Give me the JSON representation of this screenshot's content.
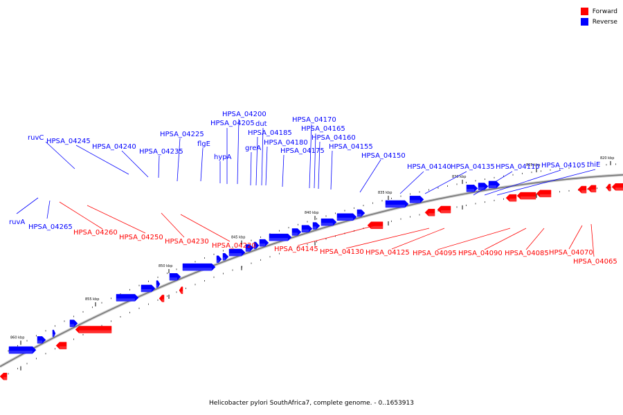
{
  "caption": "Helicobacter pylori SouthAfrica7, complete genome. - 0..1653913",
  "legend": [
    {
      "label": "Forward",
      "color": "#ff0000"
    },
    {
      "label": "Reverse",
      "color": "#0000ff"
    }
  ],
  "colors": {
    "forward": "#ff0000",
    "reverse": "#0000ff",
    "backbone": "#888888"
  },
  "scale": {
    "kbp_labels": [
      "860 kbp",
      "855 kbp",
      "850 kbp",
      "845 kbp",
      "840 kbp",
      "835 kbp",
      "830 kbp",
      "825 kbp",
      "820 kbp"
    ]
  },
  "genes": {
    "reverse": [
      "ruvC",
      "HPSA_04245",
      "HPSA_04240",
      "HPSA_04235",
      "HPSA_04225",
      "flgE",
      "hypA",
      "HPSA_04205",
      "HPSA_04200",
      "dut",
      "greA",
      "HPSA_04185",
      "HPSA_04180",
      "HPSA_04175",
      "HPSA_04170",
      "HPSA_04165",
      "HPSA_04160",
      "HPSA_04155",
      "HPSA_04150",
      "HPSA_04140",
      "HPSA_04135",
      "HPSA_04110",
      "HPSA_04105",
      "thiE",
      "ruvA",
      "HPSA_04265"
    ],
    "forward": [
      "HPSA_04260",
      "HPSA_04250",
      "HPSA_04230",
      "HPSA_04220",
      "HPSA_04145",
      "HPSA_04130",
      "HPSA_04125",
      "HPSA_04095",
      "HPSA_04090",
      "HPSA_04085",
      "HPSA_04070",
      "HPSA_04065"
    ]
  }
}
